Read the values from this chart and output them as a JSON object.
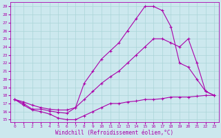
{
  "xlabel": "Windchill (Refroidissement éolien,°C)",
  "bg_color": "#cce8ee",
  "grid_color": "#aad4d8",
  "line_color": "#aa00aa",
  "xlim": [
    -0.5,
    23.5
  ],
  "ylim": [
    14.7,
    29.5
  ],
  "yticks": [
    15,
    16,
    17,
    18,
    19,
    20,
    21,
    22,
    23,
    24,
    25,
    26,
    27,
    28,
    29
  ],
  "xticks": [
    0,
    1,
    2,
    3,
    4,
    5,
    6,
    7,
    8,
    9,
    10,
    11,
    12,
    13,
    14,
    15,
    16,
    17,
    18,
    19,
    20,
    21,
    22,
    23
  ],
  "upper_x": [
    0,
    1,
    2,
    3,
    4,
    5,
    6,
    7,
    8,
    9,
    10,
    11,
    12,
    13,
    14,
    15,
    16,
    17,
    18,
    19,
    20,
    21,
    22,
    23
  ],
  "upper_y": [
    17.5,
    17.0,
    16.3,
    16.3,
    16.1,
    15.9,
    15.8,
    16.5,
    19.5,
    21.0,
    22.5,
    23.5,
    24.5,
    26.0,
    27.5,
    29.0,
    29.0,
    28.5,
    26.5,
    22.0,
    21.5,
    20.0,
    18.5,
    18.0
  ],
  "middle_x": [
    0,
    1,
    2,
    3,
    4,
    5,
    6,
    7,
    8,
    9,
    10,
    11,
    12,
    13,
    14,
    15,
    16,
    17,
    18,
    19,
    20,
    21,
    22,
    23
  ],
  "middle_y": [
    17.5,
    17.2,
    16.8,
    16.5,
    16.3,
    16.2,
    16.2,
    16.5,
    17.5,
    18.5,
    19.5,
    20.3,
    21.0,
    22.0,
    23.0,
    24.0,
    25.0,
    25.0,
    24.5,
    24.0,
    25.0,
    22.0,
    18.5,
    18.0
  ],
  "lower_x": [
    0,
    1,
    2,
    3,
    4,
    5,
    6,
    7,
    8,
    9,
    10,
    11,
    12,
    13,
    14,
    15,
    16,
    17,
    18,
    19,
    20,
    21,
    22,
    23
  ],
  "lower_y": [
    17.5,
    16.8,
    16.2,
    16.0,
    15.7,
    15.2,
    15.0,
    15.0,
    15.5,
    16.0,
    16.5,
    17.0,
    17.0,
    17.2,
    17.3,
    17.5,
    17.5,
    17.6,
    17.8,
    17.8,
    17.8,
    17.9,
    18.0,
    18.0
  ]
}
